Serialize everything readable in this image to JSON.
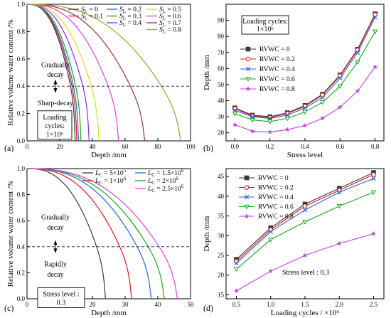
{
  "chart_data": [
    {
      "panel": "(a)",
      "type": "line",
      "xlabel": "Depth /mm",
      "ylabel": "Relative volume water content /%",
      "xlim": [
        0,
        100
      ],
      "ylim": [
        0,
        1.0
      ],
      "xticks": [
        "0",
        "20",
        "40",
        "60",
        "80",
        "100"
      ],
      "yticks": [
        "0.0",
        "0.2",
        "0.4",
        "0.6",
        "0.8",
        "1.0"
      ],
      "grid": false,
      "legend": "top-right, 3 columns",
      "annotations": {
        "upper": [
          "Gradually",
          "decay"
        ],
        "lower": "Sharp-decay",
        "box": [
          "Loading",
          "cycles:",
          "1×10⁶"
        ]
      },
      "threshold": 0.4,
      "series": [
        {
          "name": "SL = 0",
          "sub": "L",
          "value": "= 0",
          "color": "#3a3a3a",
          "end": 29.5,
          "k": 0.78
        },
        {
          "name": "SL = 0.1",
          "sub": "L",
          "value": "= 0.1",
          "color": "#e01818",
          "end": 30.5,
          "k": 0.78
        },
        {
          "name": "SL = 0.2",
          "sub": "L",
          "value": "= 0.2",
          "color": "#2a62e0",
          "end": 31.5,
          "k": 0.78
        },
        {
          "name": "SL = 0.3",
          "sub": "L",
          "value": "= 0.3",
          "color": "#18a818",
          "end": 33,
          "k": 0.78
        },
        {
          "name": "SL = 0.4",
          "sub": "L",
          "value": "= 0.4",
          "color": "#8a2be2",
          "end": 38,
          "k": 0.79
        },
        {
          "name": "SL = 0.5",
          "sub": "L",
          "value": "= 0.5",
          "color": "#e8d820",
          "end": 44,
          "k": 0.8
        },
        {
          "name": "SL = 0.6",
          "sub": "L",
          "value": "= 0.6",
          "color": "#e040e0",
          "end": 56,
          "k": 0.82
        },
        {
          "name": "SL = 0.7",
          "sub": "L",
          "value": "= 0.7",
          "color": "#8b3a3a",
          "end": 72,
          "k": 0.84
        },
        {
          "name": "SL = 0.8",
          "sub": "L",
          "value": "= 0.8",
          "color": "#a0a030",
          "end": 94,
          "k": 0.85
        }
      ]
    },
    {
      "panel": "(b)",
      "type": "line",
      "xlabel": "Stress level",
      "ylabel": "Depth /mm",
      "xlim": [
        -0.05,
        0.85
      ],
      "ylim": [
        15,
        100
      ],
      "xticks": [
        "0.0",
        "0.2",
        "0.4",
        "0.6",
        "0.8"
      ],
      "yticks": [
        "20",
        "30",
        "40",
        "50",
        "60",
        "70",
        "80",
        "90"
      ],
      "grid": false,
      "legend": "left, inside",
      "annotations": {
        "box": [
          "Loading cycles:",
          "1×10⁶"
        ]
      },
      "x": [
        0.0,
        0.1,
        0.2,
        0.3,
        0.4,
        0.5,
        0.6,
        0.7,
        0.8
      ],
      "series": [
        {
          "name": "RVWC = 0",
          "color": "#3a3a3a",
          "marker": "square",
          "values": [
            35.5,
            31.0,
            30.0,
            32.5,
            37.0,
            44.0,
            56.0,
            72.0,
            94.0
          ]
        },
        {
          "name": "RVWC = 0.2",
          "color": "#e01818",
          "marker": "circle",
          "values": [
            35.0,
            30.5,
            29.5,
            32.0,
            36.5,
            43.5,
            55.5,
            71.5,
            93.5
          ]
        },
        {
          "name": "RVWC = 0.4",
          "color": "#2a62e0",
          "marker": "x",
          "values": [
            34.0,
            30.0,
            29.0,
            31.0,
            35.5,
            42.0,
            54.0,
            70.0,
            92.0
          ]
        },
        {
          "name": "RVWC = 0.6",
          "color": "#18a818",
          "marker": "triangle",
          "values": [
            32.0,
            28.0,
            27.0,
            29.0,
            33.0,
            39.0,
            49.0,
            64.0,
            83.0
          ]
        },
        {
          "name": "RVWC = 0.8",
          "color": "#c040e0",
          "marker": "star",
          "values": [
            25.0,
            21.0,
            20.5,
            22.0,
            24.5,
            29.0,
            36.0,
            46.0,
            61.0
          ]
        }
      ]
    },
    {
      "panel": "(c)",
      "type": "line",
      "xlabel": "Depth /mm",
      "ylabel": "Relative volume water content /%",
      "xlim": [
        0,
        50
      ],
      "ylim": [
        0,
        1.0
      ],
      "xticks": [
        "0",
        "10",
        "20",
        "30",
        "40",
        "50"
      ],
      "yticks": [
        "0.0",
        "0.2",
        "0.4",
        "0.6",
        "0.8",
        "1.0"
      ],
      "grid": false,
      "legend": "top-right, 2 columns",
      "annotations": {
        "upper": [
          "Gradually",
          "decay"
        ],
        "lower": [
          "Rapidly",
          "decay"
        ],
        "box": [
          "Stress level :",
          "0.3"
        ]
      },
      "threshold": 0.4,
      "series": [
        {
          "name": "LC = 5×10⁵",
          "sub": "C",
          "value": "= 5×10",
          "exp": "5",
          "color": "#3a3a3a",
          "end": 24,
          "k": 0.82
        },
        {
          "name": "LC = 1×10⁶",
          "sub": "C",
          "value": "= 1×10",
          "exp": "6",
          "color": "#e01818",
          "end": 32,
          "k": 0.82
        },
        {
          "name": "LC = 1.5×10⁶",
          "sub": "C",
          "value": "= 1.5×10",
          "exp": "6",
          "color": "#2a62e0",
          "end": 38,
          "k": 0.82
        },
        {
          "name": "LC = 2×10⁶",
          "sub": "C",
          "value": "= 2×10",
          "exp": "6",
          "color": "#18a818",
          "end": 42,
          "k": 0.83
        },
        {
          "name": "LC = 2.5×10⁶",
          "sub": "C",
          "value": "= 2.5×10",
          "exp": "6",
          "color": "#e040e0",
          "end": 46,
          "k": 0.84
        }
      ]
    },
    {
      "panel": "(d)",
      "type": "line",
      "xlabel": "Loading cycles / ×10⁶",
      "ylabel": "Depth /mm",
      "xlim": [
        0.35,
        2.65
      ],
      "ylim": [
        14,
        47
      ],
      "xticks": [
        "0.5",
        "1.0",
        "1.5",
        "2.0",
        "2.5"
      ],
      "yticks": [
        "15",
        "20",
        "25",
        "30",
        "35",
        "40",
        "45"
      ],
      "grid": false,
      "legend": "top-left, inside",
      "annotations": {
        "text": "Stress level : 0.3"
      },
      "x": [
        0.5,
        1.0,
        1.5,
        2.0,
        2.5
      ],
      "series": [
        {
          "name": "RVWC = 0",
          "color": "#3a3a3a",
          "marker": "square",
          "values": [
            24.0,
            32.0,
            38.0,
            42.0,
            46.0
          ]
        },
        {
          "name": "RVWC = 0.2",
          "color": "#e01818",
          "marker": "circle",
          "values": [
            23.5,
            31.5,
            37.5,
            41.5,
            45.5
          ]
        },
        {
          "name": "RVWC = 0.4",
          "color": "#2a62e0",
          "marker": "x",
          "values": [
            23.0,
            31.0,
            36.5,
            41.0,
            44.5
          ]
        },
        {
          "name": "RVWC = 0.6",
          "color": "#18a818",
          "marker": "triangle",
          "values": [
            21.5,
            29.0,
            33.5,
            37.5,
            41.0
          ]
        },
        {
          "name": "RVWC = 0.8",
          "color": "#c040e0",
          "marker": "star",
          "values": [
            16.0,
            21.0,
            25.0,
            28.0,
            30.5
          ]
        }
      ]
    }
  ]
}
